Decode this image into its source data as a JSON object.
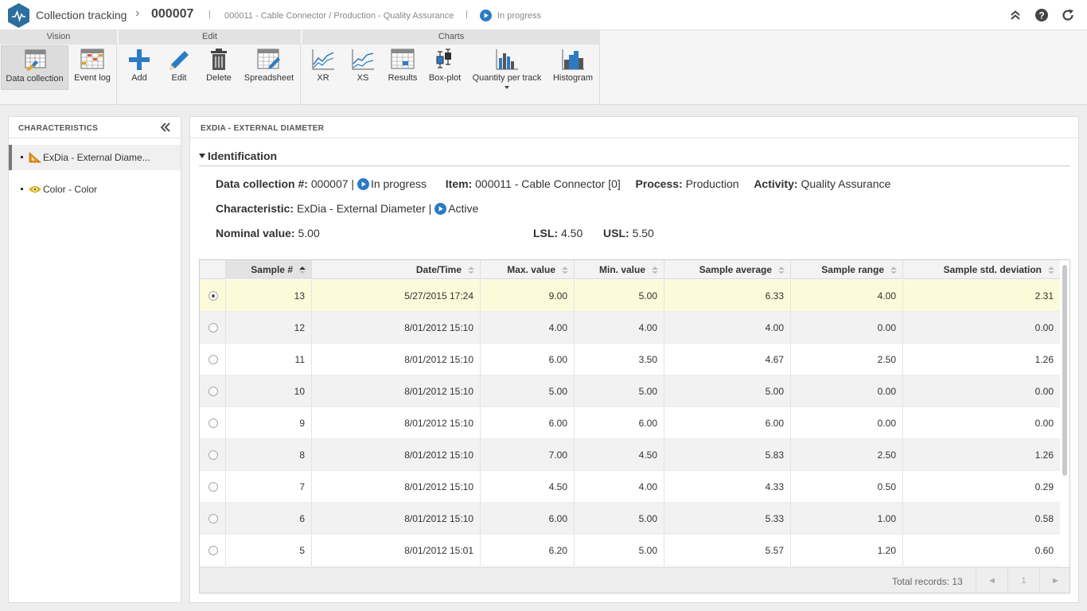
{
  "header": {
    "app_title": "Collection tracking",
    "record_id": "000007",
    "separator": "|",
    "record_description": "000011 - Cable Connector / Production - Quality Assurance",
    "status": "In progress",
    "buttons": [
      "collapse-up-icon",
      "help-icon",
      "refresh-icon"
    ]
  },
  "toolbar": {
    "groups": [
      {
        "label": "Vision",
        "items": [
          "Data collection",
          "Event log"
        ]
      },
      {
        "label": "Edit",
        "items": [
          "Add",
          "Edit",
          "Delete",
          "Spreadsheet"
        ]
      },
      {
        "label": "Charts",
        "items": [
          "XR",
          "XS",
          "Results",
          "Box-plot",
          "Quantity per track",
          "Histogram"
        ]
      }
    ]
  },
  "left_panel": {
    "title": "CHARACTERISTICS",
    "items": [
      {
        "label": "ExDia - External Diame...",
        "icon": "ruler-triangle-icon",
        "selected": true
      },
      {
        "label": "Color - Color",
        "icon": "eye-icon",
        "selected": false
      }
    ]
  },
  "main_panel": {
    "title": "EXDIA - EXTERNAL DIAMETER",
    "section_title": "Identification",
    "identification": {
      "data_collection_label": "Data collection #:",
      "data_collection_value": "000007 |",
      "data_collection_status": "In progress",
      "item_label": "Item:",
      "item_value": "000011 - Cable Connector [0]",
      "process_label": "Process:",
      "process_value": "Production",
      "activity_label": "Activity:",
      "activity_value": "Quality Assurance",
      "characteristic_label": "Characteristic:",
      "characteristic_value": "ExDia - External Diameter |",
      "characteristic_status": "Active",
      "nominal_label": "Nominal value:",
      "nominal_value": "5.00",
      "lsl_label": "LSL:",
      "lsl_value": "4.50",
      "usl_label": "USL:",
      "usl_value": "5.50"
    }
  },
  "grid": {
    "columns": [
      "Sample #",
      "Date/Time",
      "Max. value",
      "Min. value",
      "Sample average",
      "Sample range",
      "Sample std. deviation"
    ],
    "rows": [
      {
        "sample": "13",
        "datetime": "5/27/2015 17:24",
        "max": "9.00",
        "min": "5.00",
        "avg": "6.33",
        "range": "4.00",
        "std": "2.31",
        "selected": true
      },
      {
        "sample": "12",
        "datetime": "8/01/2012 15:10",
        "max": "4.00",
        "min": "4.00",
        "avg": "4.00",
        "range": "0.00",
        "std": "0.00"
      },
      {
        "sample": "11",
        "datetime": "8/01/2012 15:10",
        "max": "6.00",
        "min": "3.50",
        "avg": "4.67",
        "range": "2.50",
        "std": "1.26"
      },
      {
        "sample": "10",
        "datetime": "8/01/2012 15:10",
        "max": "5.00",
        "min": "5.00",
        "avg": "5.00",
        "range": "0.00",
        "std": "0.00"
      },
      {
        "sample": "9",
        "datetime": "8/01/2012 15:10",
        "max": "6.00",
        "min": "6.00",
        "avg": "6.00",
        "range": "0.00",
        "std": "0.00"
      },
      {
        "sample": "8",
        "datetime": "8/01/2012 15:10",
        "max": "7.00",
        "min": "4.50",
        "avg": "5.83",
        "range": "2.50",
        "std": "1.26"
      },
      {
        "sample": "7",
        "datetime": "8/01/2012 15:10",
        "max": "4.50",
        "min": "4.00",
        "avg": "4.33",
        "range": "0.50",
        "std": "0.29"
      },
      {
        "sample": "6",
        "datetime": "8/01/2012 15:10",
        "max": "6.00",
        "min": "5.00",
        "avg": "5.33",
        "range": "1.00",
        "std": "0.58"
      },
      {
        "sample": "5",
        "datetime": "8/01/2012 15:01",
        "max": "6.20",
        "min": "5.00",
        "avg": "5.57",
        "range": "1.20",
        "std": "0.60"
      }
    ],
    "footer": {
      "total_records": "Total records: 13",
      "page": "1",
      "prev": "◄",
      "next": "►"
    }
  },
  "colors": {
    "accent": "#2b7bc4",
    "logo": "#2a6f9e",
    "selected_row": "#fbfbd9"
  }
}
